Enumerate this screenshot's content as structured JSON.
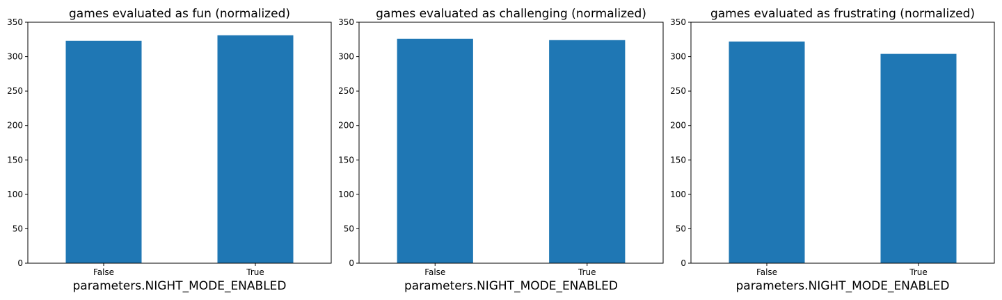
{
  "figure": {
    "bar_color": "#1f77b4",
    "background": "#ffffff"
  },
  "chart_data": [
    {
      "type": "bar",
      "title": "games evaluated as fun (normalized)",
      "xlabel": "parameters.NIGHT_MODE_ENABLED",
      "ylabel": "",
      "categories": [
        "False",
        "True"
      ],
      "values": [
        323,
        331
      ],
      "ylim": [
        0,
        350
      ],
      "yticks": [
        0,
        50,
        100,
        150,
        200,
        250,
        300,
        350
      ],
      "grid": false
    },
    {
      "type": "bar",
      "title": "games evaluated as challenging (normalized)",
      "xlabel": "parameters.NIGHT_MODE_ENABLED",
      "ylabel": "",
      "categories": [
        "False",
        "True"
      ],
      "values": [
        326,
        324
      ],
      "ylim": [
        0,
        350
      ],
      "yticks": [
        0,
        50,
        100,
        150,
        200,
        250,
        300,
        350
      ],
      "grid": false
    },
    {
      "type": "bar",
      "title": "games evaluated as frustrating (normalized)",
      "xlabel": "parameters.NIGHT_MODE_ENABLED",
      "ylabel": "",
      "categories": [
        "False",
        "True"
      ],
      "values": [
        322,
        304
      ],
      "ylim": [
        0,
        350
      ],
      "yticks": [
        0,
        50,
        100,
        150,
        200,
        250,
        300,
        350
      ],
      "grid": false
    }
  ]
}
